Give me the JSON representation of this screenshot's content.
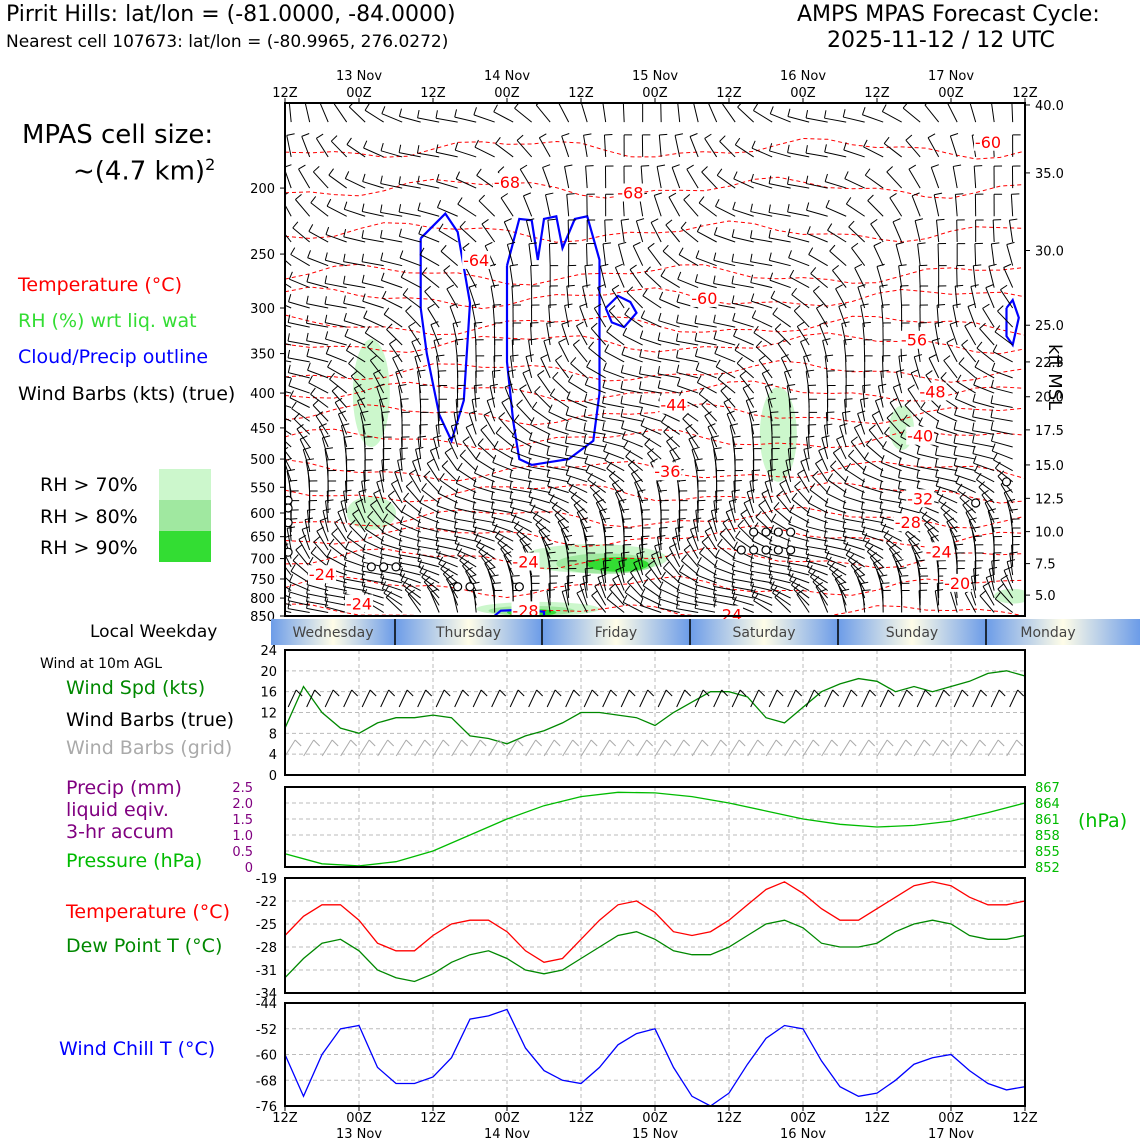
{
  "header": {
    "station_title": "Pirrit Hills: lat/lon = (-81.0000, -84.0000)",
    "nearest_cell": "Nearest cell 107673: lat/lon = (-80.9965, 276.0272)",
    "forecast_title": "AMPS MPAS Forecast Cycle:",
    "forecast_cycle": "2025-11-12 / 12 UTC"
  },
  "legend": {
    "cell_size_label": "MPAS cell size:",
    "cell_size_value": "~(4.7 km)",
    "cell_size_exp": "2",
    "temperature": "Temperature (°C)",
    "rh": "RH (%) wrt liq. wat",
    "cloud": "Cloud/Precip outline",
    "wind_barbs": "Wind Barbs (kts) (true)",
    "rh_70": "RH > 70%",
    "rh_80": "RH > 80%",
    "rh_90": "RH > 90%",
    "local_weekday": "Local Weekday",
    "wind_10m": "Wind at 10m AGL",
    "wind_spd": "Wind Spd (kts)",
    "barbs_true": "Wind Barbs (true)",
    "barbs_grid": "Wind Barbs (grid)",
    "precip_1": "Precip (mm)",
    "precip_2": "liquid eqiv.",
    "precip_3": "3-hr accum",
    "pressure": "Pressure (hPa)",
    "pressure_unit": "(hPa)",
    "temp2": "Temperature (°C)",
    "dewpoint": "Dew Point T (°C)",
    "windchill": "Wind Chill T (°C)",
    "kft": "kft MSL"
  },
  "colors": {
    "temperature": "#ff0000",
    "rh_text": "#33dd33",
    "cloud": "#0000ff",
    "wind": "#000000",
    "wind_spd": "#008800",
    "grid_barbs": "#aaaaaa",
    "precip": "#800080",
    "pressure": "#00bb00",
    "dewpoint": "#008800",
    "windchill": "#0000ff",
    "rh70": "#ccf7cc",
    "rh80": "#a0e8a0",
    "rh90": "#33dd33"
  },
  "time_axis": {
    "hour_labels": [
      "12Z",
      "00Z",
      "12Z",
      "00Z",
      "12Z",
      "00Z",
      "12Z",
      "00Z",
      "12Z",
      "00Z",
      "12Z"
    ],
    "date_labels": [
      "13 Nov",
      "14 Nov",
      "15 Nov",
      "16 Nov",
      "17 Nov"
    ]
  },
  "weekdays": [
    "Wednesday",
    "Thursday",
    "Friday",
    "Saturday",
    "Sunday",
    "Monday"
  ],
  "chart_data": [
    {
      "type": "contour",
      "name": "time-height cross section",
      "x_hours": [
        0,
        120
      ],
      "y_pressure_hpa": [
        850,
        150
      ],
      "pressure_ticks": [
        200,
        250,
        300,
        350,
        400,
        450,
        500,
        550,
        600,
        650,
        700,
        750,
        800,
        850
      ],
      "kft_ticks": [
        "40.0",
        "35.0",
        "30.0",
        "25.0",
        "22.5",
        "20.0",
        "17.5",
        "15.0",
        "12.5",
        "10.0",
        "7.5",
        "5.0"
      ],
      "kft_pressure": [
        151,
        190,
        247,
        318,
        360,
        405,
        453,
        510,
        571,
        639,
        712,
        792
      ],
      "temperature_levels": [
        {
          "label": "-68",
          "h": 36,
          "p": 196
        },
        {
          "label": "-68",
          "h": 56,
          "p": 203
        },
        {
          "label": "-64",
          "h": 31,
          "p": 255
        },
        {
          "label": "-60",
          "h": 68,
          "p": 290
        },
        {
          "label": "-60",
          "h": 114,
          "p": 171
        },
        {
          "label": "-56",
          "h": 102,
          "p": 334
        },
        {
          "label": "-48",
          "h": 105,
          "p": 398
        },
        {
          "label": "-44",
          "h": 63,
          "p": 416
        },
        {
          "label": "-40",
          "h": 103,
          "p": 462
        },
        {
          "label": "-36",
          "h": 62,
          "p": 521
        },
        {
          "label": "-32",
          "h": 103,
          "p": 571
        },
        {
          "label": "-28",
          "h": 101,
          "p": 619
        },
        {
          "label": "-28",
          "h": 39,
          "p": 834
        },
        {
          "label": "-24",
          "h": 106,
          "p": 683
        },
        {
          "label": "-24",
          "h": 39,
          "p": 707
        },
        {
          "label": "-24",
          "h": 6,
          "p": 738
        },
        {
          "label": "-24",
          "h": 12,
          "p": 815
        },
        {
          "label": "-24",
          "h": 72,
          "p": 846
        },
        {
          "label": "-20",
          "h": 109,
          "p": 760
        }
      ]
    },
    {
      "type": "line",
      "name": "10m wind speed",
      "ylabel": "kts",
      "ylim": [
        0,
        24
      ],
      "yticks": [
        0,
        4,
        8,
        12,
        16,
        20,
        24
      ],
      "x_hours": [
        0,
        3,
        6,
        9,
        12,
        15,
        18,
        21,
        24,
        27,
        30,
        33,
        36,
        39,
        42,
        45,
        48,
        51,
        54,
        57,
        60,
        63,
        66,
        69,
        72,
        75,
        78,
        81,
        84,
        87,
        90,
        93,
        96,
        99,
        102,
        105,
        108,
        111,
        114,
        117,
        120
      ],
      "values": [
        9,
        17,
        12,
        9,
        8,
        10,
        11,
        11,
        11.5,
        11,
        7.5,
        7,
        6,
        7.5,
        8.5,
        10,
        12,
        12,
        11.5,
        11,
        9.5,
        12,
        14,
        16,
        16,
        15,
        11,
        10,
        13,
        16,
        17.5,
        18.5,
        18,
        16,
        17,
        16,
        17,
        18,
        19.5,
        20,
        19
      ]
    },
    {
      "type": "line",
      "name": "surface pressure",
      "ylabel": "hPa",
      "ylim": [
        852,
        867
      ],
      "yticks": [
        852,
        855,
        858,
        861,
        864,
        867
      ],
      "precip_yticks": [
        "0",
        "0.5",
        "1.0",
        "1.5",
        "2.0",
        "2.5"
      ],
      "x_hours": [
        0,
        6,
        12,
        18,
        24,
        30,
        36,
        42,
        48,
        54,
        60,
        66,
        72,
        78,
        84,
        90,
        96,
        102,
        108,
        114,
        120
      ],
      "values": [
        854.5,
        852.6,
        852.2,
        853.0,
        855.0,
        858.0,
        861.0,
        863.5,
        865.2,
        866.0,
        865.9,
        865.2,
        864.0,
        862.5,
        861.0,
        860.0,
        859.5,
        859.8,
        860.6,
        862.2,
        864.0
      ]
    },
    {
      "type": "line",
      "name": "temperature and dew point",
      "ylabel": "°C",
      "ylim": [
        -34,
        -19
      ],
      "yticks": [
        -34,
        -31,
        -28,
        -25,
        -22,
        -19
      ],
      "x_hours": [
        0,
        3,
        6,
        9,
        12,
        15,
        18,
        21,
        24,
        27,
        30,
        33,
        36,
        39,
        42,
        45,
        48,
        51,
        54,
        57,
        60,
        63,
        66,
        69,
        72,
        75,
        78,
        81,
        84,
        87,
        90,
        93,
        96,
        99,
        102,
        105,
        108,
        111,
        114,
        117,
        120
      ],
      "series": [
        {
          "name": "Temperature",
          "values": [
            -26.5,
            -24,
            -22.5,
            -22.5,
            -24.5,
            -27.5,
            -28.5,
            -28.5,
            -26.5,
            -25,
            -24.5,
            -24.5,
            -26,
            -28.5,
            -30,
            -29.5,
            -27,
            -24.5,
            -22.5,
            -22,
            -23.5,
            -26,
            -26.5,
            -26,
            -24.5,
            -22.5,
            -20.5,
            -19.5,
            -21,
            -23,
            -24.5,
            -24.5,
            -23,
            -21.5,
            -20,
            -19.5,
            -20,
            -21.5,
            -22.5,
            -22.5,
            -22
          ]
        },
        {
          "name": "Dew Point",
          "values": [
            -32,
            -29.5,
            -27.5,
            -27,
            -28.5,
            -31,
            -32,
            -32.5,
            -31.5,
            -30,
            -29,
            -28.5,
            -29.5,
            -31,
            -31.5,
            -31,
            -29.5,
            -28,
            -26.5,
            -26,
            -27,
            -28.5,
            -29,
            -29,
            -28,
            -26.5,
            -25,
            -24.5,
            -25.5,
            -27.5,
            -28,
            -28,
            -27.5,
            -26,
            -25,
            -24.5,
            -25,
            -26.5,
            -27,
            -27,
            -26.5
          ]
        }
      ]
    },
    {
      "type": "line",
      "name": "wind chill",
      "ylabel": "°C",
      "ylim": [
        -76,
        -44
      ],
      "yticks": [
        -76,
        -68,
        -60,
        -52,
        -44
      ],
      "x_hours": [
        0,
        3,
        6,
        9,
        12,
        15,
        18,
        21,
        24,
        27,
        30,
        33,
        36,
        39,
        42,
        45,
        48,
        51,
        54,
        57,
        60,
        63,
        66,
        69,
        72,
        75,
        78,
        81,
        84,
        87,
        90,
        93,
        96,
        99,
        102,
        105,
        108,
        111,
        114,
        117,
        120
      ],
      "values": [
        -60,
        -73,
        -60,
        -52,
        -51,
        -64,
        -69,
        -69,
        -67,
        -61,
        -49,
        -48,
        -46,
        -58,
        -65,
        -68,
        -69,
        -64,
        -57,
        -53.5,
        -52,
        -64,
        -73,
        -76,
        -72,
        -63,
        -55,
        -51,
        -52,
        -62,
        -70,
        -73,
        -72,
        -68,
        -63,
        -61,
        -60,
        -65,
        -69,
        -71,
        -70
      ]
    }
  ]
}
